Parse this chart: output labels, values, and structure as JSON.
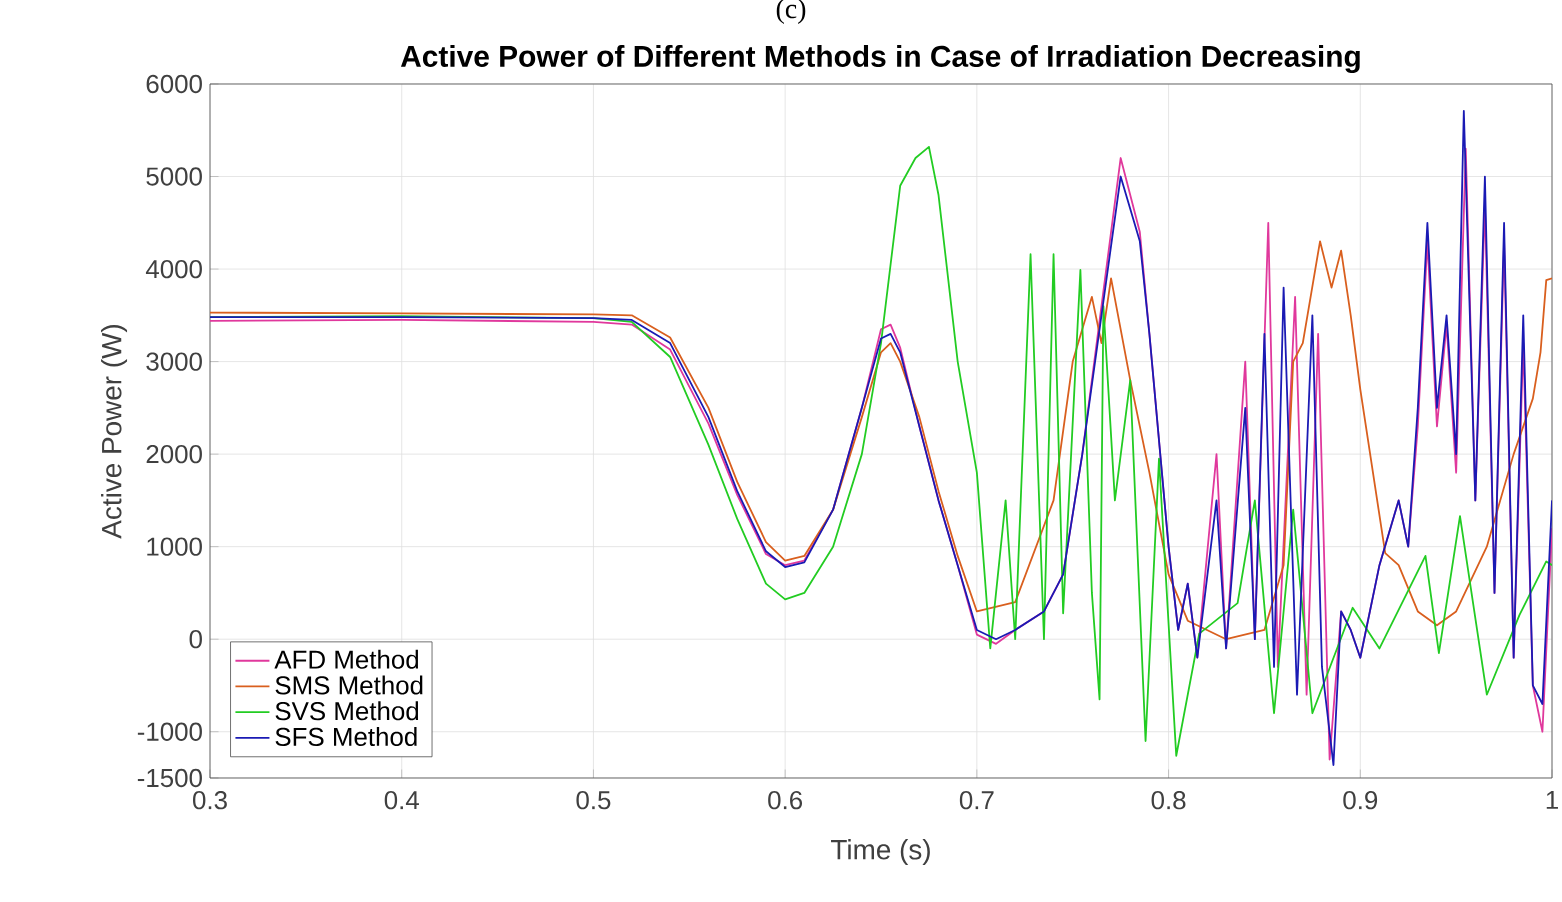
{
  "chart_data": {
    "type": "line",
    "title": "Active Power of Different Methods in Case of Irradiation Decreasing",
    "xlabel": "Time (s)",
    "ylabel": "Active Power (W)",
    "annotations": [
      "(c)"
    ],
    "xlim": [
      0.3,
      1
    ],
    "xticks": [
      0.3,
      0.4,
      0.5,
      0.6,
      0.7,
      0.8,
      0.9,
      1
    ],
    "ylim": [
      -1500,
      6000
    ],
    "yticks": [
      -1500,
      -1000,
      0,
      1000,
      2000,
      3000,
      4000,
      5000,
      6000
    ],
    "grid": true,
    "legend": "bottom left",
    "line_style": "solid",
    "series": [
      {
        "name": "AFD Method",
        "color": "#e0389c",
        "x": [
          0.3,
          0.4,
          0.5,
          0.52,
          0.54,
          0.56,
          0.575,
          0.59,
          0.6,
          0.61,
          0.625,
          0.64,
          0.65,
          0.655,
          0.66,
          0.67,
          0.68,
          0.69,
          0.7,
          0.71,
          0.72,
          0.735,
          0.745,
          0.755,
          0.765,
          0.775,
          0.785,
          0.79,
          0.8,
          0.805,
          0.81,
          0.815,
          0.825,
          0.83,
          0.84,
          0.845,
          0.852,
          0.857,
          0.866,
          0.872,
          0.878,
          0.884,
          0.89,
          0.895,
          0.9,
          0.91,
          0.92,
          0.925,
          0.93,
          0.935,
          0.94,
          0.945,
          0.95,
          0.955,
          0.96,
          0.965,
          0.97,
          0.975,
          0.98,
          0.985,
          0.99,
          0.995,
          1
        ],
        "values": [
          3440,
          3450,
          3430,
          3400,
          3130,
          2330,
          1560,
          920,
          800,
          850,
          1400,
          2500,
          3350,
          3400,
          3150,
          2300,
          1500,
          800,
          50,
          -50,
          100,
          300,
          700,
          2000,
          3600,
          5200,
          4400,
          3300,
          1000,
          100,
          600,
          -200,
          2000,
          -100,
          3000,
          0,
          4500,
          -300,
          3700,
          -600,
          3300,
          -1300,
          300,
          100,
          -200,
          800,
          1500,
          1000,
          2300,
          4300,
          2300,
          3400,
          1800,
          5300,
          1500,
          4700,
          500,
          4300,
          -200,
          3200,
          -500,
          -1000,
          1200
        ]
      },
      {
        "name": "SMS Method",
        "color": "#d95f1e",
        "x": [
          0.3,
          0.4,
          0.5,
          0.52,
          0.54,
          0.56,
          0.575,
          0.59,
          0.6,
          0.61,
          0.625,
          0.64,
          0.65,
          0.655,
          0.66,
          0.67,
          0.68,
          0.69,
          0.7,
          0.72,
          0.74,
          0.75,
          0.76,
          0.765,
          0.77,
          0.78,
          0.79,
          0.8,
          0.81,
          0.83,
          0.85,
          0.86,
          0.865,
          0.87,
          0.879,
          0.885,
          0.89,
          0.895,
          0.9,
          0.913,
          0.92,
          0.93,
          0.94,
          0.95,
          0.966,
          0.98,
          0.99,
          0.994,
          0.997,
          1
        ],
        "values": [
          3530,
          3520,
          3510,
          3500,
          3260,
          2500,
          1700,
          1050,
          850,
          900,
          1400,
          2400,
          3100,
          3200,
          3000,
          2400,
          1600,
          900,
          300,
          400,
          1500,
          3000,
          3700,
          3200,
          3900,
          2800,
          1800,
          700,
          200,
          0,
          100,
          800,
          3000,
          3200,
          4300,
          3800,
          4200,
          3500,
          2700,
          930,
          800,
          300,
          150,
          300,
          1000,
          2000,
          2600,
          3100,
          3880,
          3900
        ]
      },
      {
        "name": "SVS Method",
        "color": "#22cc22",
        "x": [
          0.3,
          0.4,
          0.5,
          0.52,
          0.54,
          0.56,
          0.575,
          0.59,
          0.6,
          0.61,
          0.625,
          0.64,
          0.65,
          0.66,
          0.668,
          0.675,
          0.68,
          0.69,
          0.7,
          0.707,
          0.715,
          0.72,
          0.728,
          0.735,
          0.74,
          0.745,
          0.754,
          0.76,
          0.764,
          0.766,
          0.772,
          0.78,
          0.788,
          0.795,
          0.804,
          0.816,
          0.836,
          0.845,
          0.855,
          0.865,
          0.875,
          0.896,
          0.91,
          0.934,
          0.941,
          0.952,
          0.966,
          0.983,
          0.997,
          1
        ],
        "values": [
          3480,
          3490,
          3470,
          3430,
          3050,
          2100,
          1300,
          600,
          430,
          500,
          1000,
          2000,
          3200,
          4900,
          5200,
          5320,
          4800,
          3000,
          1800,
          -100,
          1500,
          0,
          4160,
          0,
          4160,
          280,
          3990,
          500,
          -650,
          3600,
          1500,
          2800,
          -1100,
          1950,
          -1260,
          60,
          390,
          1500,
          -800,
          1400,
          -800,
          340,
          -100,
          900,
          -150,
          1330,
          -600,
          260,
          840,
          800
        ]
      },
      {
        "name": "SFS Method",
        "color": "#1a1ab4",
        "x": [
          0.3,
          0.4,
          0.5,
          0.52,
          0.54,
          0.56,
          0.575,
          0.59,
          0.6,
          0.61,
          0.625,
          0.64,
          0.65,
          0.655,
          0.66,
          0.67,
          0.68,
          0.69,
          0.7,
          0.71,
          0.72,
          0.735,
          0.745,
          0.755,
          0.765,
          0.775,
          0.785,
          0.79,
          0.8,
          0.805,
          0.81,
          0.815,
          0.825,
          0.83,
          0.84,
          0.845,
          0.85,
          0.855,
          0.86,
          0.867,
          0.875,
          0.88,
          0.886,
          0.89,
          0.895,
          0.9,
          0.91,
          0.92,
          0.925,
          0.93,
          0.935,
          0.94,
          0.945,
          0.95,
          0.954,
          0.96,
          0.965,
          0.97,
          0.975,
          0.98,
          0.985,
          0.99,
          0.995,
          1
        ],
        "values": [
          3480,
          3480,
          3470,
          3450,
          3200,
          2400,
          1600,
          950,
          780,
          830,
          1400,
          2500,
          3250,
          3300,
          3100,
          2300,
          1500,
          800,
          100,
          0,
          100,
          300,
          700,
          2000,
          3500,
          5000,
          4300,
          3300,
          1000,
          100,
          600,
          -200,
          1500,
          -100,
          2500,
          0,
          3300,
          -300,
          3800,
          -600,
          3500,
          -300,
          -1360,
          300,
          100,
          -200,
          800,
          1500,
          1000,
          2500,
          4500,
          2500,
          3500,
          2000,
          5710,
          1500,
          5000,
          500,
          4500,
          -200,
          3500,
          -500,
          -700,
          1500
        ]
      }
    ]
  }
}
